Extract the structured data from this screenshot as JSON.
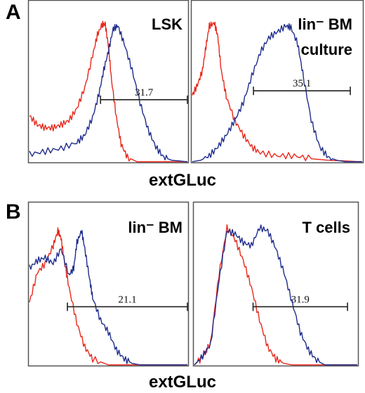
{
  "panels": [
    {
      "letter": "A",
      "x_axis_label": "extGLuc"
    },
    {
      "letter": "B",
      "x_axis_label": "extGLuc"
    }
  ],
  "colors": {
    "red": "#e8281c",
    "blue": "#1f2d8c",
    "frame": "#555555",
    "gate": "#222222"
  },
  "chart_data": [
    {
      "type": "line",
      "title": "LSK",
      "title_lines": [
        "LSK"
      ],
      "xlabel": "extGLuc",
      "ylabel": "",
      "xlim": [
        0,
        100
      ],
      "ylim": [
        0,
        100
      ],
      "grid": false,
      "gate": {
        "label": "31.7",
        "range": [
          45,
          100
        ],
        "level": 42
      },
      "series": [
        {
          "color": "red",
          "x": [
            0,
            5,
            10,
            15,
            20,
            25,
            30,
            35,
            40,
            43,
            46,
            48,
            50,
            52,
            55,
            58,
            62,
            68,
            75,
            100
          ],
          "y": [
            31,
            25,
            23,
            23,
            25,
            28,
            36,
            50,
            72,
            86,
            93,
            93,
            78,
            55,
            30,
            12,
            3,
            0,
            0,
            0
          ]
        },
        {
          "color": "blue",
          "x": [
            0,
            10,
            20,
            30,
            35,
            40,
            44,
            47,
            50,
            53,
            56,
            60,
            65,
            70,
            75,
            80,
            85,
            90,
            100
          ],
          "y": [
            5,
            7,
            9,
            13,
            18,
            30,
            46,
            62,
            75,
            90,
            92,
            80,
            62,
            40,
            22,
            10,
            3,
            1,
            0
          ]
        }
      ]
    },
    {
      "type": "line",
      "title": "lin⁻ BM culture",
      "title_lines": [
        "lin⁻ BM",
        "culture"
      ],
      "xlabel": "extGLuc",
      "ylabel": "",
      "xlim": [
        0,
        100
      ],
      "ylim": [
        0,
        100
      ],
      "grid": false,
      "gate": {
        "label": "35.1",
        "range": [
          36,
          93
        ],
        "level": 48
      },
      "series": [
        {
          "color": "red",
          "x": [
            0,
            3,
            6,
            8,
            10,
            13,
            15,
            17,
            20,
            25,
            30,
            35,
            40,
            50,
            60,
            70,
            80,
            100
          ],
          "y": [
            45,
            52,
            62,
            78,
            92,
            94,
            85,
            62,
            44,
            28,
            18,
            10,
            6,
            4,
            4,
            2,
            1,
            0
          ]
        },
        {
          "color": "blue",
          "x": [
            0,
            5,
            10,
            15,
            20,
            25,
            30,
            35,
            40,
            45,
            50,
            55,
            58,
            62,
            65,
            70,
            75,
            80,
            85,
            90,
            100
          ],
          "y": [
            0,
            1,
            4,
            10,
            18,
            28,
            40,
            58,
            74,
            84,
            88,
            92,
            91,
            80,
            60,
            28,
            10,
            3,
            1,
            0,
            0
          ]
        }
      ]
    },
    {
      "type": "line",
      "title": "lin⁻ BM",
      "title_lines": [
        "lin⁻ BM"
      ],
      "xlabel": "extGLuc",
      "ylabel": "",
      "xlim": [
        0,
        100
      ],
      "ylim": [
        0,
        100
      ],
      "grid": false,
      "gate": {
        "label": "21.1",
        "range": [
          24,
          100
        ],
        "level": 39
      },
      "series": [
        {
          "color": "red",
          "x": [
            0,
            5,
            10,
            15,
            18,
            20,
            22,
            25,
            30,
            35,
            40,
            50,
            60,
            100
          ],
          "y": [
            42,
            62,
            68,
            80,
            90,
            85,
            70,
            52,
            28,
            12,
            4,
            0,
            0,
            0
          ]
        },
        {
          "color": "blue",
          "x": [
            0,
            5,
            10,
            15,
            20,
            25,
            28,
            30,
            33,
            35,
            38,
            40,
            45,
            50,
            55,
            60,
            65,
            70,
            100
          ],
          "y": [
            65,
            70,
            72,
            68,
            78,
            60,
            65,
            82,
            90,
            78,
            58,
            45,
            30,
            22,
            10,
            4,
            1,
            0,
            0
          ]
        }
      ]
    },
    {
      "type": "line",
      "title": "T cells",
      "title_lines": [
        "T cells"
      ],
      "xlabel": "extGLuc",
      "ylabel": "",
      "xlim": [
        0,
        100
      ],
      "ylim": [
        0,
        100
      ],
      "grid": false,
      "gate": {
        "label": "31.9",
        "range": [
          36,
          94
        ],
        "level": 39
      },
      "series": [
        {
          "color": "red",
          "x": [
            0,
            5,
            10,
            15,
            20,
            25,
            30,
            35,
            40,
            45,
            50,
            55,
            60,
            100
          ],
          "y": [
            0,
            5,
            15,
            60,
            92,
            84,
            70,
            52,
            30,
            12,
            4,
            1,
            0,
            0
          ]
        },
        {
          "color": "blue",
          "x": [
            0,
            5,
            10,
            15,
            20,
            25,
            30,
            35,
            40,
            45,
            50,
            55,
            60,
            65,
            70,
            75,
            80,
            100
          ],
          "y": [
            0,
            6,
            14,
            56,
            90,
            88,
            82,
            80,
            92,
            90,
            78,
            62,
            42,
            22,
            10,
            3,
            0,
            0
          ]
        }
      ]
    }
  ]
}
